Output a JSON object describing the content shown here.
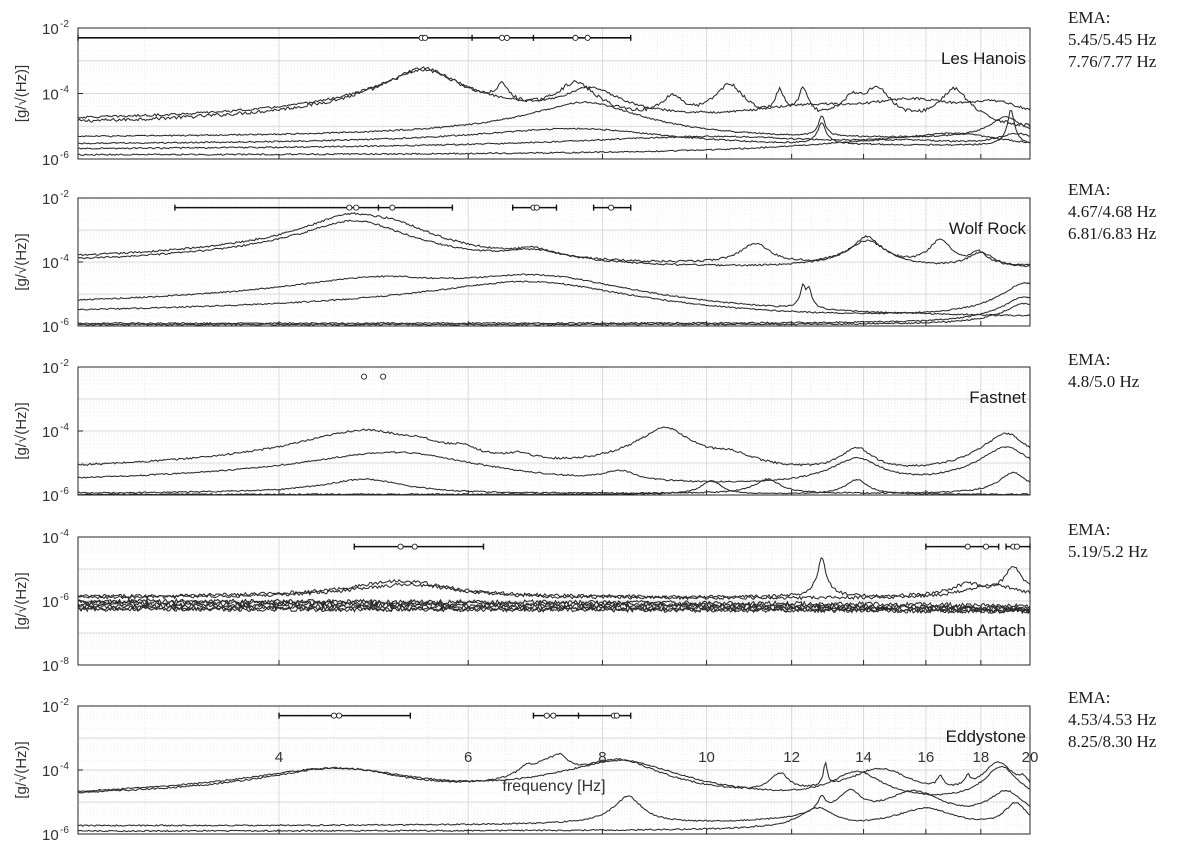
{
  "xlabel": "frequency [Hz]",
  "x_ticks": [
    "4",
    "6",
    "8",
    "10",
    "12",
    "14",
    "16",
    "18",
    "20"
  ],
  "colors": {
    "trace": "#2a2a2a",
    "grid": "#d9d9d9",
    "axis": "#262626",
    "text": "#333333"
  },
  "chart_data": [
    {
      "type": "line",
      "scale": "log-y",
      "grid": true,
      "title": "Les Hanois",
      "ylabel": "[g/√(Hz)]",
      "xlim": [
        2.6,
        20
      ],
      "ylim": [
        1e-06,
        0.01
      ],
      "y_ticks": [
        [
          "-2",
          0.01
        ],
        [
          "-4",
          0.0001
        ],
        [
          "-6",
          1e-06
        ]
      ],
      "errorbars": [
        {
          "x": [
            2.6,
            8.5
          ],
          "y": 0.005,
          "markers": [
            5.43,
            5.47,
            6.45,
            6.52,
            7.55,
            7.75
          ],
          "ticks": [
            6.05,
            6.9
          ]
        }
      ],
      "series": [
        {
          "base": 7e-06,
          "peaks": [
            [
              5.45,
              0.00058,
              0.3
            ],
            [
              6.45,
              0.00014,
              0.08
            ],
            [
              7.55,
              0.0002,
              0.25
            ],
            [
              9.3,
              7e-05,
              0.2
            ],
            [
              10.5,
              0.00018,
              0.25
            ],
            [
              11.7,
              0.00011,
              0.1
            ],
            [
              12.3,
              0.00013,
              0.1
            ],
            [
              13.7,
              7e-05,
              0.3
            ],
            [
              14.4,
              0.00015,
              0.3
            ],
            [
              17,
              0.00013,
              0.4
            ]
          ],
          "noise": 0.12
        },
        {
          "base": 9e-06,
          "peaks": [
            [
              5.45,
              0.0005,
              0.35
            ],
            [
              7.8,
              0.00013,
              0.4
            ],
            [
              12.5,
              2.5e-05,
              1.5
            ],
            [
              15.5,
              5e-05,
              1.5
            ],
            [
              18.5,
              4e-05,
              1.2
            ]
          ],
          "noise": 0.08
        },
        {
          "base": 4e-06,
          "peaks": [
            [
              7.7,
              5e-05,
              0.7
            ],
            [
              12.8,
              1.6e-05,
              0.08
            ],
            [
              19,
              1.5e-05,
              0.6
            ]
          ],
          "noise": 0.05
        },
        {
          "base": 2.5e-06,
          "peaks": [
            [
              7.5,
              6e-06,
              1.5
            ],
            [
              12.8,
              1e-05,
              0.1
            ],
            [
              19.2,
              3e-05,
              0.1
            ]
          ],
          "noise": 0.05
        },
        {
          "base": 1.6e-06,
          "peaks": [
            [
              10,
              3e-06,
              3
            ],
            [
              17,
              4e-06,
              2
            ]
          ],
          "noise": 0.05
        },
        {
          "base": 1.2e-06,
          "peaks": [
            [
              15,
              2.5e-06,
              3
            ],
            [
              19.5,
              4e-06,
              1
            ]
          ],
          "noise": 0.05
        }
      ]
    },
    {
      "type": "line",
      "scale": "log-y",
      "grid": true,
      "title": "Wolf Rock",
      "ylabel": "[g/√(Hz)]",
      "xlim": [
        2.6,
        20
      ],
      "ylim": [
        1e-06,
        0.01
      ],
      "y_ticks": [
        [
          "-2",
          0.01
        ],
        [
          "-4",
          0.0001
        ],
        [
          "-6",
          1e-06
        ]
      ],
      "errorbars": [
        {
          "x": [
            3.2,
            5.8
          ],
          "y": 0.005,
          "markers": [
            4.65,
            4.72,
            5.1
          ],
          "ticks": [
            4.95
          ]
        },
        {
          "x": [
            6.6,
            7.25
          ],
          "y": 0.005,
          "markers": [
            6.9,
            6.95
          ],
          "ticks": []
        },
        {
          "x": [
            7.85,
            8.5
          ],
          "y": 0.005,
          "markers": [
            8.15
          ],
          "ticks": []
        }
      ],
      "series": [
        {
          "base": 7e-05,
          "peaks": [
            [
              4.68,
              0.0028,
              0.35
            ],
            [
              5.1,
              0.001,
              0.3
            ],
            [
              6.9,
              0.00012,
              0.3
            ],
            [
              11.1,
              0.0003,
              0.3
            ],
            [
              14.1,
              0.00055,
              0.35
            ],
            [
              16.5,
              0.00045,
              0.3
            ],
            [
              17.9,
              0.00013,
              0.3
            ]
          ],
          "noise": 0.07
        },
        {
          "base": 6e-05,
          "peaks": [
            [
              4.7,
              0.0019,
              0.4
            ],
            [
              6.9,
              0.00013,
              0.5
            ],
            [
              14.1,
              0.0004,
              0.5
            ],
            [
              18,
              0.00013,
              0.5
            ]
          ],
          "noise": 0.06
        },
        {
          "base": 1.8e-06,
          "peaks": [
            [
              4.95,
              2.5e-05,
              0.8
            ],
            [
              6.9,
              3.5e-05,
              1.1
            ],
            [
              12.3,
              1.5e-05,
              0.06
            ],
            [
              12.45,
              1.2e-05,
              0.06
            ]
          ],
          "noise": 0.05
        },
        {
          "base": 1.5e-06,
          "peaks": [
            [
              6.8,
              2.3e-05,
              1.2
            ],
            [
              19.8,
              2e-05,
              0.8
            ]
          ],
          "noise": 0.05
        },
        {
          "base": 1.2e-06,
          "peaks": [
            [
              19.8,
              7e-06,
              0.8
            ]
          ],
          "noise": 0.05
        },
        {
          "base": 1.1e-06,
          "peaks": [
            [
              19.8,
              4e-06,
              0.8
            ]
          ],
          "noise": 0.05
        }
      ]
    },
    {
      "type": "line",
      "scale": "log-y",
      "grid": true,
      "title": "Fastnet",
      "ylabel": "[g/√(Hz)]",
      "xlim": [
        2.6,
        20
      ],
      "ylim": [
        1e-06,
        0.01
      ],
      "y_ticks": [
        [
          "-2",
          0.01
        ],
        [
          "-4",
          0.0001
        ],
        [
          "-6",
          1e-06
        ]
      ],
      "errorbars": [
        {
          "x": null,
          "y": 0.005,
          "markers": [
            4.8,
            5.0
          ],
          "ticks": []
        }
      ],
      "series": [
        {
          "base": 3e-06,
          "peaks": [
            [
              4.8,
              0.0001,
              0.5
            ],
            [
              5.4,
              2e-05,
              0.2
            ],
            [
              5.9,
              1.5e-05,
              0.2
            ],
            [
              6.7,
              8e-06,
              0.2
            ],
            [
              9.15,
              0.00012,
              0.4
            ],
            [
              10.5,
              1.2e-05,
              0.5
            ],
            [
              13.8,
              2.5e-05,
              0.4
            ],
            [
              19,
              8e-05,
              0.7
            ]
          ],
          "noise": 0.07
        },
        {
          "base": 1.5e-06,
          "peaks": [
            [
              5.1,
              2e-05,
              0.8
            ],
            [
              8.3,
              3e-06,
              0.3
            ],
            [
              13.8,
              1.2e-05,
              0.6
            ],
            [
              19,
              3e-05,
              0.8
            ]
          ],
          "noise": 0.05
        },
        {
          "base": 1.1e-06,
          "peaks": [
            [
              4.8,
              2e-06,
              0.4
            ],
            [
              11.4,
              2e-06,
              0.3
            ],
            [
              19.3,
              4e-06,
              0.5
            ]
          ],
          "noise": 0.05
        },
        {
          "base": 1.05e-06,
          "peaks": [
            [
              10.1,
              1.8e-06,
              0.2
            ],
            [
              13.8,
              2e-06,
              0.3
            ]
          ],
          "noise": 0.04
        }
      ]
    },
    {
      "type": "line",
      "scale": "log-y",
      "grid": true,
      "title": "Dubh Artach",
      "ylabel": "[g/√(Hz)]",
      "xlim": [
        2.6,
        20
      ],
      "ylim": [
        1e-08,
        0.0001
      ],
      "y_ticks": [
        [
          "-4",
          0.0001
        ],
        [
          "-6",
          1e-06
        ],
        [
          "-8",
          1e-08
        ]
      ],
      "errorbars": [
        {
          "x": [
            4.7,
            6.2
          ],
          "y": 5e-05,
          "markers": [
            5.19,
            5.35
          ],
          "ticks": []
        },
        {
          "x": [
            16,
            18.7
          ],
          "y": 5e-05,
          "markers": [
            17.5,
            18.2
          ],
          "ticks": []
        },
        {
          "x": [
            19,
            20
          ],
          "y": 5e-05,
          "markers": [
            19.3,
            19.45
          ],
          "ticks": []
        }
      ],
      "series": [
        {
          "base": 1.3e-06,
          "peaks": [
            [
              5.2,
              3e-06,
              0.5
            ],
            [
              12.8,
              2e-05,
              0.08
            ],
            [
              19.3,
              1e-05,
              0.3
            ],
            [
              17.5,
              2e-06,
              0.6
            ]
          ],
          "noise": 0.12
        },
        {
          "base": 1.2e-06,
          "peaks": [
            [
              5.25,
              2e-06,
              0.6
            ],
            [
              18.5,
              2e-06,
              1
            ]
          ],
          "noise": 0.12
        },
        {
          "base": 1e-06,
          "tilt": -0.3,
          "peaks": [],
          "noise": 0.15
        },
        {
          "base": 9e-07,
          "tilt": -0.35,
          "peaks": [],
          "noise": 0.15
        },
        {
          "base": 8e-07,
          "tilt": -0.3,
          "peaks": [],
          "noise": 0.15
        },
        {
          "base": 7e-07,
          "tilt": -0.25,
          "peaks": [],
          "noise": 0.15
        },
        {
          "base": 6e-07,
          "tilt": -0.2,
          "peaks": [],
          "noise": 0.15
        },
        {
          "base": 5.5e-07,
          "tilt": -0.15,
          "peaks": [],
          "noise": 0.15
        }
      ]
    },
    {
      "type": "line",
      "scale": "log-y",
      "grid": true,
      "title": "Eddystone",
      "ylabel": "[g/√(Hz)]",
      "xlim": [
        2.6,
        20
      ],
      "ylim": [
        1e-06,
        0.01
      ],
      "y_ticks": [
        [
          "-2",
          0.01
        ],
        [
          "-4",
          0.0001
        ],
        [
          "-6",
          1e-06
        ]
      ],
      "errorbars": [
        {
          "x": [
            4.0,
            5.3
          ],
          "y": 0.005,
          "markers": [
            4.5,
            4.55
          ],
          "ticks": []
        },
        {
          "x": [
            6.9,
            8.5
          ],
          "y": 0.005,
          "markers": [
            7.1,
            7.2,
            8.2,
            8.25
          ],
          "ticks": [
            7.6
          ]
        }
      ],
      "series": [
        {
          "base": 8e-06,
          "peaks": [
            [
              4.53,
              0.0001,
              0.6
            ],
            [
              6.8,
              6e-05,
              0.12
            ],
            [
              7.1,
              0.00012,
              0.2
            ],
            [
              7.3,
              0.00018,
              0.12
            ],
            [
              8.25,
              0.0002,
              0.6
            ],
            [
              11.7,
              6e-05,
              0.2
            ],
            [
              12.9,
              0.00015,
              0.04
            ],
            [
              14.5,
              0.0001,
              0.8
            ],
            [
              16.5,
              4e-05,
              0.1
            ],
            [
              17.5,
              3.5e-05,
              0.1
            ],
            [
              18.7,
              0.00016,
              0.5
            ],
            [
              19.7,
              3e-05,
              0.2
            ]
          ],
          "noise": 0.06
        },
        {
          "base": 6e-06,
          "peaks": [
            [
              4.5,
              0.0001,
              0.7
            ],
            [
              8.3,
              0.00019,
              0.8
            ],
            [
              13.8,
              8e-05,
              0.6
            ],
            [
              18.8,
              0.00012,
              0.5
            ]
          ],
          "noise": 0.05
        },
        {
          "base": 1.7e-06,
          "peaks": [
            [
              8.45,
              1.3e-05,
              0.2
            ],
            [
              12.8,
              1e-05,
              0.1
            ],
            [
              13.6,
              2e-05,
              0.3
            ],
            [
              15.6,
              2e-05,
              0.8
            ],
            [
              19,
              2e-05,
              0.6
            ]
          ],
          "noise": 0.05
        },
        {
          "base": 1.2e-06,
          "peaks": [
            [
              12.7,
              5e-06,
              0.4
            ],
            [
              16,
              5e-06,
              1
            ],
            [
              19.4,
              8e-06,
              0.4
            ]
          ],
          "noise": 0.05
        }
      ]
    }
  ],
  "ema_notes": [
    {
      "label": "EMA:",
      "lines": [
        "5.45/5.45 Hz",
        "7.76/7.77 Hz"
      ]
    },
    {
      "label": "EMA:",
      "lines": [
        "4.67/4.68 Hz",
        "6.81/6.83 Hz"
      ]
    },
    {
      "label": "EMA:",
      "lines": [
        "4.8/5.0 Hz"
      ]
    },
    {
      "label": "EMA:",
      "lines": [
        "5.19/5.2 Hz"
      ]
    },
    {
      "label": "EMA:",
      "lines": [
        "4.53/4.53 Hz",
        "8.25/8.30 Hz"
      ]
    }
  ]
}
